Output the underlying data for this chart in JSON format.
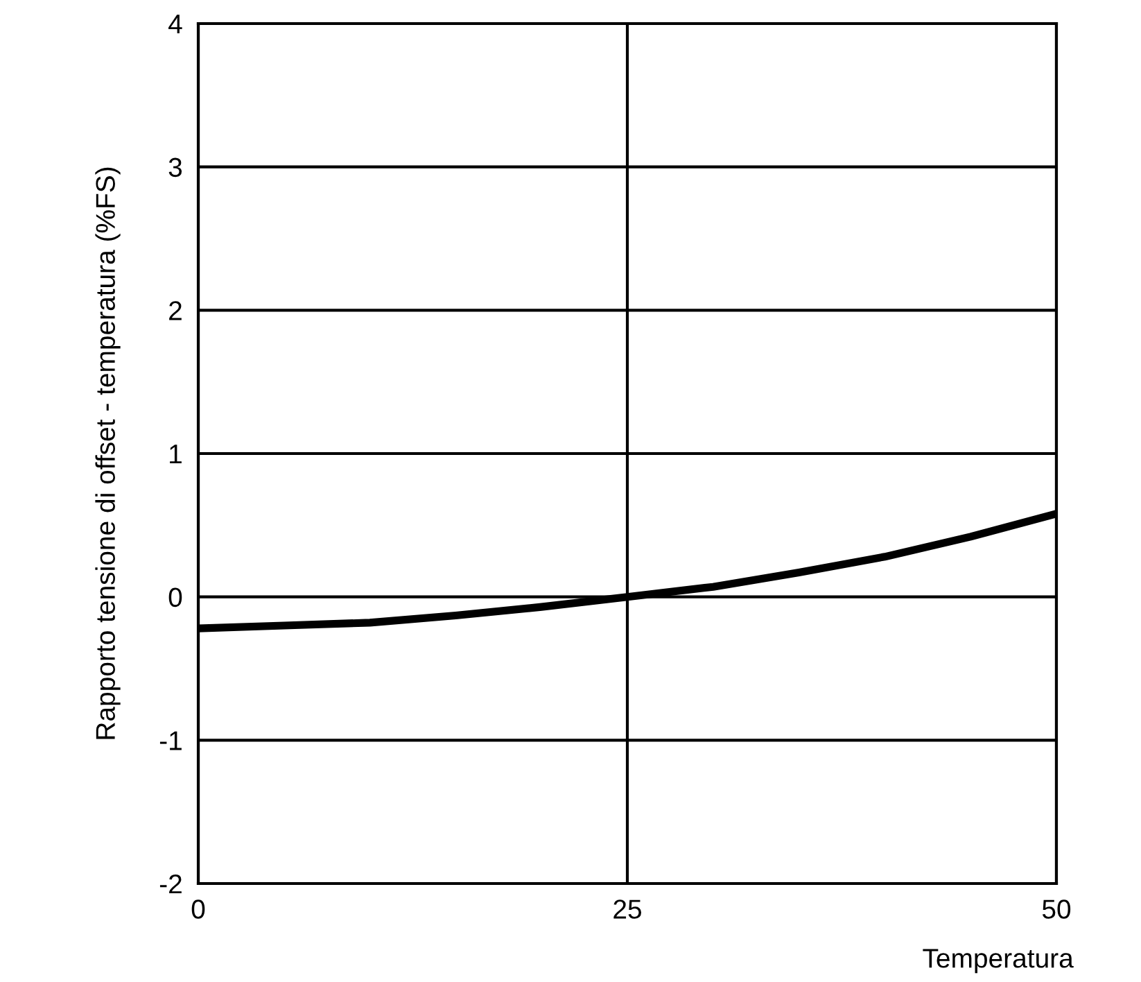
{
  "chart_data": {
    "type": "line",
    "xlabel": "Temperatura",
    "ylabel": "Rapporto tensione di offset - temperatura (%FS)",
    "x": [
      0,
      5,
      10,
      15,
      20,
      25,
      30,
      35,
      40,
      45,
      50
    ],
    "series": [
      {
        "color": "#000000",
        "values": [
          -0.22,
          -0.2,
          -0.18,
          -0.13,
          -0.07,
          0,
          0.07,
          0.17,
          0.28,
          0.42,
          0.58
        ]
      }
    ],
    "xlim": [
      0,
      50
    ],
    "ylim": [
      -2,
      4
    ],
    "xticks": [
      0,
      25,
      50
    ],
    "yticks": [
      -2,
      -1,
      0,
      1,
      2,
      3,
      4
    ],
    "grid": true,
    "marker": "none",
    "line_style": "solid"
  }
}
